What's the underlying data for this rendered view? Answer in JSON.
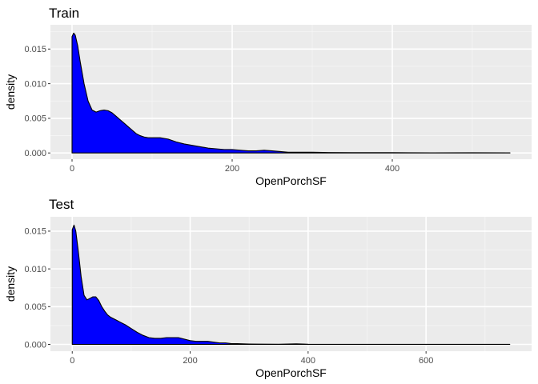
{
  "chart_data": [
    {
      "type": "area",
      "title": "Train",
      "xlabel": "OpenPorchSF",
      "ylabel": "density",
      "xlim": [
        -27,
        574
      ],
      "ylim": [
        -0.0009,
        0.0185
      ],
      "xticks": [
        0,
        200,
        400
      ],
      "yticks": [
        0.0,
        0.005,
        0.01,
        0.015
      ],
      "ytick_labels": [
        "0.000",
        "0.005",
        "0.010",
        "0.015"
      ],
      "grid": true,
      "fill_color": "#0000ff",
      "line_color": "#000000",
      "panel_color": "#ebebeb",
      "x": [
        0,
        2,
        4,
        7,
        10,
        15,
        20,
        25,
        30,
        35,
        40,
        45,
        50,
        55,
        60,
        65,
        70,
        75,
        80,
        85,
        90,
        95,
        100,
        105,
        110,
        115,
        120,
        130,
        140,
        150,
        160,
        170,
        180,
        190,
        200,
        210,
        220,
        230,
        240,
        250,
        260,
        270,
        280,
        300,
        320,
        350,
        400,
        450,
        500,
        547
      ],
      "values": [
        0.0168,
        0.0173,
        0.017,
        0.0155,
        0.0133,
        0.01,
        0.0075,
        0.0062,
        0.0059,
        0.0061,
        0.0062,
        0.0061,
        0.0058,
        0.0053,
        0.0048,
        0.0043,
        0.0038,
        0.0033,
        0.0028,
        0.0025,
        0.0023,
        0.0022,
        0.0022,
        0.0022,
        0.0022,
        0.0021,
        0.002,
        0.0016,
        0.0013,
        0.0011,
        0.0009,
        0.0007,
        0.0006,
        0.0005,
        0.0005,
        0.0004,
        0.0003,
        0.0003,
        0.0004,
        0.0003,
        0.0002,
        0.0001,
        0.0001,
        0.0001,
        6e-05,
        4e-05,
        5e-05,
        2e-05,
        3e-05,
        2e-05
      ]
    },
    {
      "type": "area",
      "title": "Test",
      "xlabel": "OpenPorchSF",
      "ylabel": "density",
      "xlim": [
        -37,
        779
      ],
      "ylim": [
        -0.0009,
        0.0169
      ],
      "xticks": [
        0,
        200,
        400,
        600
      ],
      "yticks": [
        0.0,
        0.005,
        0.01,
        0.015
      ],
      "ytick_labels": [
        "0.000",
        "0.005",
        "0.010",
        "0.015"
      ],
      "grid": true,
      "fill_color": "#0000ff",
      "line_color": "#000000",
      "panel_color": "#ebebeb",
      "x": [
        0,
        3,
        6,
        10,
        15,
        20,
        25,
        30,
        35,
        40,
        45,
        50,
        55,
        60,
        65,
        70,
        75,
        80,
        90,
        100,
        110,
        120,
        130,
        140,
        150,
        160,
        170,
        180,
        190,
        200,
        210,
        220,
        230,
        240,
        250,
        260,
        270,
        280,
        300,
        320,
        350,
        380,
        400,
        450,
        500,
        600,
        700,
        742
      ],
      "values": [
        0.0152,
        0.0158,
        0.015,
        0.0125,
        0.009,
        0.0065,
        0.0059,
        0.0061,
        0.0063,
        0.0063,
        0.0058,
        0.005,
        0.0044,
        0.0039,
        0.0036,
        0.0034,
        0.0032,
        0.003,
        0.0026,
        0.0021,
        0.0016,
        0.0012,
        0.0009,
        0.0008,
        0.0008,
        0.0009,
        0.0009,
        0.0009,
        0.0007,
        0.0005,
        0.0004,
        0.0004,
        0.0004,
        0.0003,
        0.0002,
        0.0002,
        0.0001,
        0.0001,
        5e-05,
        3e-05,
        2e-05,
        8e-05,
        2e-05,
        1e-05,
        1e-05,
        1e-05,
        1e-05,
        1e-05
      ]
    }
  ]
}
